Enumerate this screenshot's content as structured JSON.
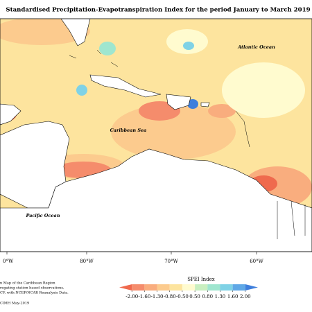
{
  "title": "Standardised Precipitation-Evapotranspiration Index for the period January to March 2019",
  "labels": {
    "atlantic": "Atlantic Ocean",
    "caribbean": "Caribbean Sea",
    "pacific": "Pacific Ocean"
  },
  "longitudes": [
    "0°W",
    "80°W",
    "70°W",
    "60°W"
  ],
  "footer": [
    "n Map of the Caribbean Region",
    "regating station based observations,",
    "CF, with NCEP/NCAR Reanalysis Data.",
    "CIMH May-2019"
  ],
  "legend": {
    "title": "SPEI Index",
    "ticks": [
      {
        "value": -2,
        "label": "-2.00"
      },
      {
        "value": -1.6,
        "label": "-1.60"
      },
      {
        "value": -1.3,
        "label": "-1.30"
      },
      {
        "value": -0.8,
        "label": "-0.80"
      },
      {
        "value": -0.5,
        "label": "-0.50"
      },
      {
        "value": 0.5,
        "label": "0.50"
      },
      {
        "value": 0.8,
        "label": "0.80"
      },
      {
        "value": 1.3,
        "label": "1.30"
      },
      {
        "value": 1.6,
        "label": "1.60"
      },
      {
        "value": 2,
        "label": "2.00"
      }
    ],
    "colors": [
      "#ef6a4e",
      "#f58c6c",
      "#f9ad7e",
      "#fccb8e",
      "#fde49e",
      "#fffbcf",
      "#c9efc0",
      "#9fe6cf",
      "#7fd2e6",
      "#5fa8e6",
      "#3f7fdc"
    ]
  }
}
